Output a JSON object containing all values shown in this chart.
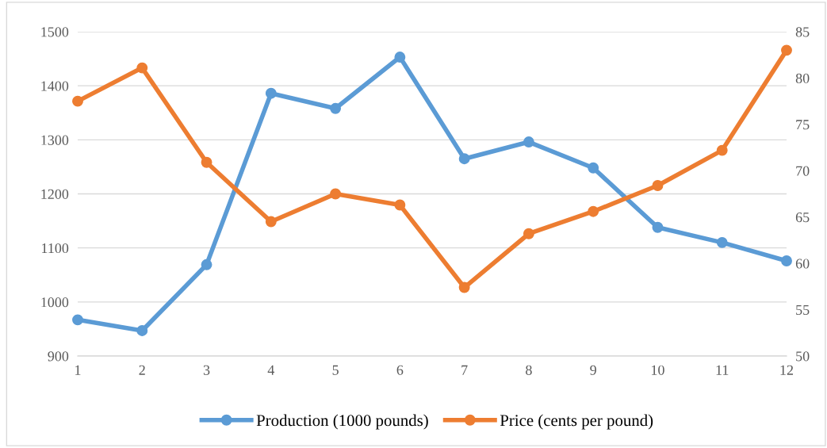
{
  "chart_data": {
    "type": "line",
    "categories": [
      "1",
      "2",
      "3",
      "4",
      "5",
      "6",
      "7",
      "8",
      "9",
      "10",
      "11",
      "12"
    ],
    "series": [
      {
        "name": "Production (1000 pounds)",
        "color": "#5b9bd5",
        "values": [
          967,
          947,
          1069,
          1386,
          1358,
          1453,
          1265,
          1296,
          1248,
          1138,
          1110,
          1076
        ]
      },
      {
        "name": "Price (cents per pound)",
        "color": "#ed7d31",
        "axis": "y2",
        "values": [
          77.5,
          81.1,
          70.9,
          64.5,
          67.5,
          66.3,
          57.4,
          63.2,
          65.6,
          68.4,
          72.2,
          83.0
        ]
      }
    ],
    "ylim": [
      900,
      1500
    ],
    "yticks": [
      900,
      1000,
      1100,
      1200,
      1300,
      1400,
      1500
    ],
    "y2lim": [
      50,
      85
    ],
    "y2ticks": [
      50,
      55,
      60,
      65,
      70,
      75,
      80,
      85
    ],
    "grid": "y",
    "legend": "bottom",
    "marker": "circle",
    "line_style": "solid"
  }
}
